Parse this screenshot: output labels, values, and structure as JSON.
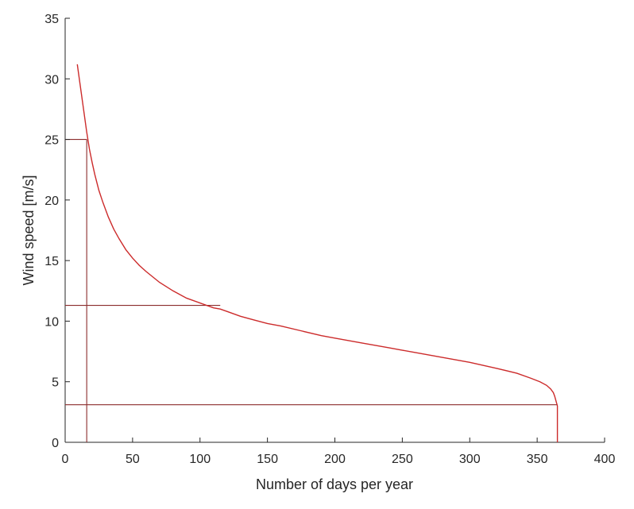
{
  "chart_data": {
    "type": "line",
    "title": "",
    "xlabel": "Number of days per year",
    "ylabel": "Wind speed [m/s]",
    "xlim": [
      0,
      400
    ],
    "ylim": [
      0,
      35
    ],
    "xticks": [
      0,
      50,
      100,
      150,
      200,
      250,
      300,
      350,
      400
    ],
    "yticks": [
      0,
      5,
      10,
      15,
      20,
      25,
      30,
      35
    ],
    "xtick_labels": [
      "0",
      "50",
      "100",
      "150",
      "200",
      "250",
      "300",
      "350",
      "400"
    ],
    "ytick_labels": [
      "0",
      "5",
      "10",
      "15",
      "20",
      "25",
      "30",
      "35"
    ],
    "grid": false,
    "legend": "none",
    "line_color": "#cc2b2b",
    "guide_color": "#8b2c2c",
    "series": [
      {
        "x": [
          9,
          10,
          11,
          12,
          13,
          14,
          15,
          16,
          17,
          18,
          20,
          22,
          25,
          28,
          32,
          36,
          40,
          45,
          50,
          55,
          60,
          70,
          80,
          90,
          100,
          110,
          115,
          120,
          130,
          140,
          150,
          160,
          175,
          190,
          200,
          220,
          240,
          250,
          260,
          280,
          300,
          320,
          335,
          345,
          352,
          357,
          360,
          362,
          363,
          364,
          365,
          365
        ],
        "y": [
          31.2,
          30.4,
          29.6,
          28.8,
          28.0,
          27.2,
          26.4,
          25.6,
          24.9,
          24.2,
          23.1,
          22.1,
          20.8,
          19.8,
          18.6,
          17.6,
          16.8,
          15.9,
          15.2,
          14.6,
          14.1,
          13.2,
          12.5,
          11.9,
          11.5,
          11.1,
          11.0,
          10.8,
          10.4,
          10.1,
          9.8,
          9.6,
          9.2,
          8.8,
          8.6,
          8.2,
          7.8,
          7.6,
          7.4,
          7.0,
          6.6,
          6.1,
          5.7,
          5.3,
          5.0,
          4.7,
          4.4,
          4.1,
          3.8,
          3.4,
          3.0,
          0.0
        ]
      }
    ],
    "guides": {
      "vertical_x": 16,
      "vertical_y_range": [
        0,
        25
      ],
      "horizontal": [
        {
          "y": 25,
          "x_range": [
            0,
            16
          ]
        },
        {
          "y": 11.3,
          "x_range": [
            0,
            115
          ]
        },
        {
          "y": 3.1,
          "x_range": [
            0,
            365
          ]
        }
      ]
    }
  }
}
